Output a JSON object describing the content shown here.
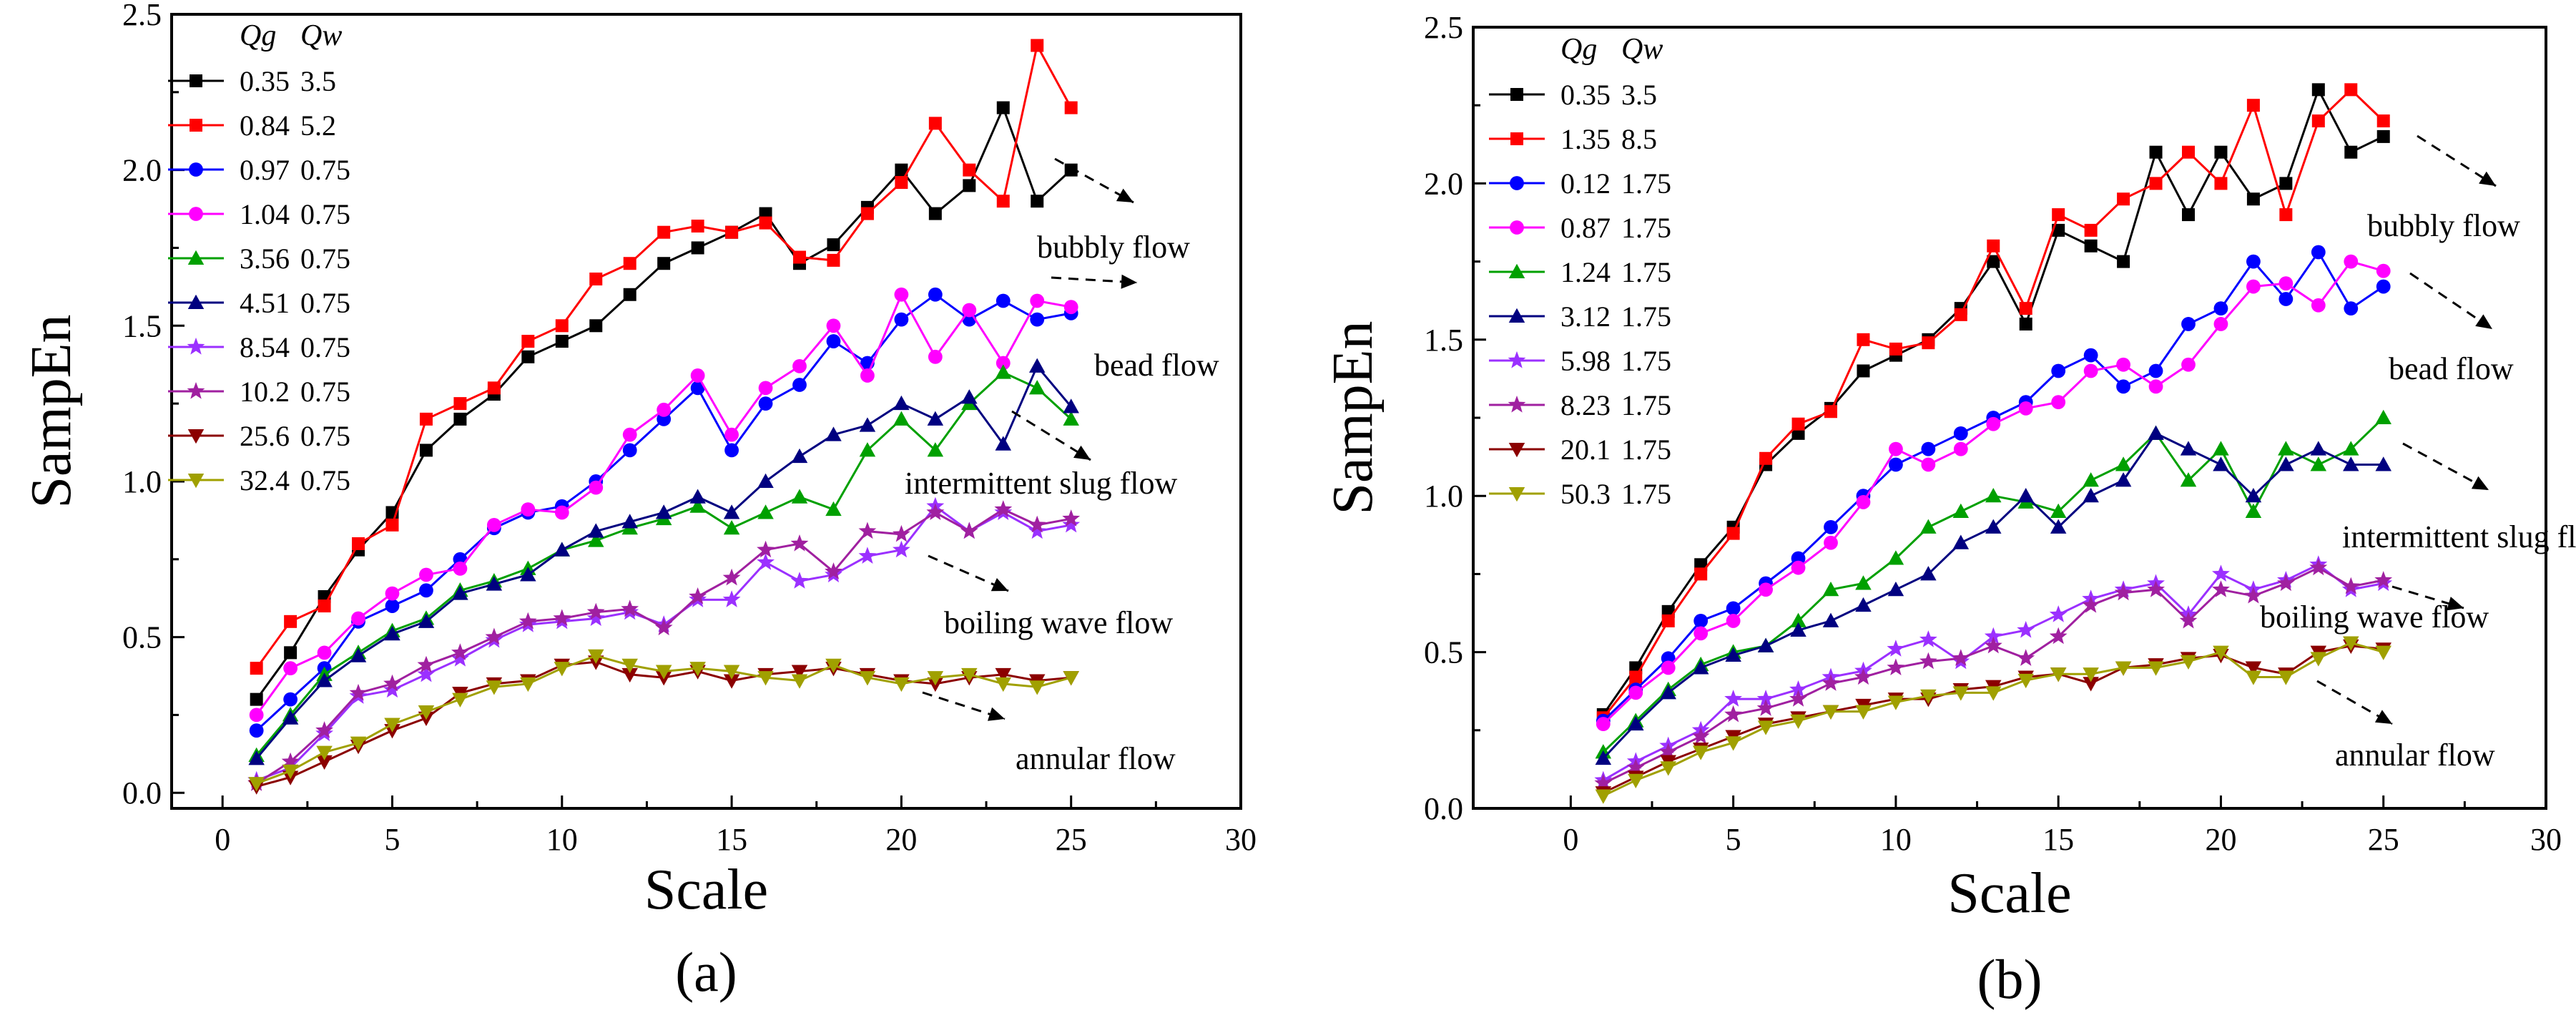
{
  "chart_data": [
    {
      "type": "line",
      "panel": "(a)",
      "xlabel": "Scale",
      "ylabel": "SampEn",
      "xlim": [
        -1.5,
        30
      ],
      "ylim": [
        -0.05,
        2.5
      ],
      "xticks": [
        0,
        5,
        10,
        15,
        20,
        25,
        30
      ],
      "yticks": [
        0.0,
        0.5,
        1.0,
        1.5,
        2.0,
        2.5
      ],
      "legend_headers": [
        "Qg",
        "Qw"
      ],
      "legend_position": "top-left",
      "x": [
        1,
        2,
        3,
        4,
        5,
        6,
        7,
        8,
        9,
        10,
        11,
        12,
        13,
        14,
        15,
        16,
        17,
        18,
        19,
        20,
        21,
        22,
        23,
        24,
        25
      ],
      "series": [
        {
          "qg": "0.35",
          "qw": "3.5",
          "color": "#000000",
          "marker": "square",
          "values": [
            0.3,
            0.45,
            0.63,
            0.78,
            0.9,
            1.1,
            1.2,
            1.28,
            1.4,
            1.45,
            1.5,
            1.6,
            1.7,
            1.75,
            1.8,
            1.86,
            1.7,
            1.76,
            1.88,
            2.0,
            1.86,
            1.95,
            2.2,
            1.9,
            2.0
          ]
        },
        {
          "qg": "0.84",
          "qw": "5.2",
          "color": "#ff0000",
          "marker": "square",
          "values": [
            0.4,
            0.55,
            0.6,
            0.8,
            0.86,
            1.2,
            1.25,
            1.3,
            1.45,
            1.5,
            1.65,
            1.7,
            1.8,
            1.82,
            1.8,
            1.83,
            1.72,
            1.71,
            1.86,
            1.96,
            2.15,
            2.0,
            1.9,
            2.4,
            2.2
          ]
        },
        {
          "qg": "0.97",
          "qw": "0.75",
          "color": "#0000ff",
          "marker": "circle",
          "values": [
            0.2,
            0.3,
            0.4,
            0.55,
            0.6,
            0.65,
            0.75,
            0.85,
            0.9,
            0.92,
            1.0,
            1.1,
            1.2,
            1.3,
            1.1,
            1.25,
            1.31,
            1.45,
            1.38,
            1.52,
            1.6,
            1.52,
            1.58,
            1.52,
            1.54
          ]
        },
        {
          "qg": "1.04",
          "qw": "0.75",
          "color": "#ff00ff",
          "marker": "circle",
          "values": [
            0.25,
            0.4,
            0.45,
            0.56,
            0.64,
            0.7,
            0.72,
            0.86,
            0.91,
            0.9,
            0.98,
            1.15,
            1.23,
            1.34,
            1.15,
            1.3,
            1.37,
            1.5,
            1.34,
            1.6,
            1.4,
            1.55,
            1.38,
            1.58,
            1.56
          ]
        },
        {
          "qg": "3.56",
          "qw": "0.75",
          "color": "#00a000",
          "marker": "triangle-up",
          "values": [
            0.12,
            0.25,
            0.38,
            0.45,
            0.52,
            0.56,
            0.65,
            0.68,
            0.72,
            0.78,
            0.81,
            0.85,
            0.88,
            0.92,
            0.85,
            0.9,
            0.95,
            0.91,
            1.1,
            1.2,
            1.1,
            1.25,
            1.35,
            1.3,
            1.2
          ]
        },
        {
          "qg": "4.51",
          "qw": "0.75",
          "color": "#000080",
          "marker": "triangle-up",
          "values": [
            0.11,
            0.24,
            0.36,
            0.44,
            0.51,
            0.55,
            0.64,
            0.67,
            0.7,
            0.78,
            0.84,
            0.87,
            0.9,
            0.95,
            0.9,
            1.0,
            1.08,
            1.15,
            1.18,
            1.25,
            1.2,
            1.27,
            1.12,
            1.37,
            1.24
          ]
        },
        {
          "qg": "8.54",
          "qw": "0.75",
          "color": "#9b30ff",
          "marker": "star",
          "values": [
            0.04,
            0.08,
            0.19,
            0.31,
            0.33,
            0.38,
            0.43,
            0.49,
            0.54,
            0.55,
            0.56,
            0.58,
            0.54,
            0.62,
            0.62,
            0.74,
            0.68,
            0.7,
            0.76,
            0.78,
            0.92,
            0.84,
            0.9,
            0.84,
            0.86
          ]
        },
        {
          "qg": "10.2",
          "qw": "0.75",
          "color": "#a020a0",
          "marker": "star",
          "values": [
            0.03,
            0.1,
            0.2,
            0.32,
            0.35,
            0.41,
            0.45,
            0.5,
            0.55,
            0.56,
            0.58,
            0.59,
            0.53,
            0.63,
            0.69,
            0.78,
            0.8,
            0.71,
            0.84,
            0.83,
            0.9,
            0.84,
            0.91,
            0.86,
            0.88
          ]
        },
        {
          "qg": "25.6",
          "qw": "0.75",
          "color": "#8b0000",
          "marker": "triangle-down",
          "values": [
            0.02,
            0.05,
            0.1,
            0.15,
            0.2,
            0.24,
            0.32,
            0.35,
            0.36,
            0.41,
            0.42,
            0.38,
            0.37,
            0.39,
            0.36,
            0.38,
            0.39,
            0.4,
            0.38,
            0.36,
            0.35,
            0.37,
            0.38,
            0.36,
            0.37
          ]
        },
        {
          "qg": "32.4",
          "qw": "0.75",
          "color": "#a0a000",
          "marker": "triangle-down",
          "values": [
            0.03,
            0.07,
            0.13,
            0.16,
            0.22,
            0.26,
            0.3,
            0.34,
            0.35,
            0.4,
            0.44,
            0.41,
            0.39,
            0.4,
            0.39,
            0.37,
            0.36,
            0.41,
            0.37,
            0.35,
            0.37,
            0.38,
            0.35,
            0.34,
            0.37
          ]
        }
      ],
      "annotations": [
        {
          "text": "bubbly flow",
          "x": 25.5,
          "y": 2.0
        },
        {
          "text": "bead flow",
          "x": 25.5,
          "y": 1.57
        },
        {
          "text": "intermittent slug flow",
          "x": 23.8,
          "y": 1.27
        },
        {
          "text": "boiling wave flow",
          "x": 21.8,
          "y": 0.88
        },
        {
          "text": "annular flow",
          "x": 21.2,
          "y": 0.34
        }
      ]
    },
    {
      "type": "line",
      "panel": "(b)",
      "xlabel": "Scale",
      "ylabel": "SampEn",
      "xlim": [
        -3,
        30
      ],
      "ylim": [
        0.0,
        2.5
      ],
      "xticks": [
        0,
        5,
        10,
        15,
        20,
        25,
        30
      ],
      "yticks": [
        0.0,
        0.5,
        1.0,
        1.5,
        2.0,
        2.5
      ],
      "legend_headers": [
        "Qg",
        "Qw"
      ],
      "legend_position": "top-left",
      "x": [
        1,
        2,
        3,
        4,
        5,
        6,
        7,
        8,
        9,
        10,
        11,
        12,
        13,
        14,
        15,
        16,
        17,
        18,
        19,
        20,
        21,
        22,
        23,
        24,
        25
      ],
      "series": [
        {
          "qg": "0.35",
          "qw": "3.5",
          "color": "#000000",
          "marker": "square",
          "values": [
            0.3,
            0.45,
            0.63,
            0.78,
            0.9,
            1.1,
            1.2,
            1.28,
            1.4,
            1.45,
            1.5,
            1.6,
            1.75,
            1.55,
            1.85,
            1.8,
            1.75,
            2.1,
            1.9,
            2.1,
            1.95,
            2.0,
            2.3,
            2.1,
            2.15
          ]
        },
        {
          "qg": "1.35",
          "qw": "8.5",
          "color": "#ff0000",
          "marker": "square",
          "values": [
            0.29,
            0.42,
            0.6,
            0.75,
            0.88,
            1.12,
            1.23,
            1.27,
            1.5,
            1.47,
            1.49,
            1.58,
            1.8,
            1.6,
            1.9,
            1.85,
            1.95,
            2.0,
            2.1,
            2.0,
            2.25,
            1.9,
            2.2,
            2.3,
            2.2
          ]
        },
        {
          "qg": "0.12",
          "qw": "1.75",
          "color": "#0000ff",
          "marker": "circle",
          "values": [
            0.28,
            0.38,
            0.48,
            0.6,
            0.64,
            0.72,
            0.8,
            0.9,
            1.0,
            1.1,
            1.15,
            1.2,
            1.25,
            1.3,
            1.4,
            1.45,
            1.35,
            1.4,
            1.55,
            1.6,
            1.75,
            1.63,
            1.78,
            1.6,
            1.67
          ]
        },
        {
          "qg": "0.87",
          "qw": "1.75",
          "color": "#ff00ff",
          "marker": "circle",
          "values": [
            0.27,
            0.37,
            0.45,
            0.56,
            0.6,
            0.7,
            0.77,
            0.85,
            0.98,
            1.15,
            1.1,
            1.15,
            1.23,
            1.28,
            1.3,
            1.4,
            1.42,
            1.35,
            1.42,
            1.55,
            1.67,
            1.68,
            1.61,
            1.75,
            1.72
          ]
        },
        {
          "qg": "1.24",
          "qw": "1.75",
          "color": "#00a000",
          "marker": "triangle-up",
          "values": [
            0.18,
            0.28,
            0.38,
            0.46,
            0.5,
            0.52,
            0.6,
            0.7,
            0.72,
            0.8,
            0.9,
            0.95,
            1.0,
            0.98,
            0.95,
            1.05,
            1.1,
            1.2,
            1.05,
            1.15,
            0.95,
            1.15,
            1.1,
            1.15,
            1.25
          ]
        },
        {
          "qg": "3.12",
          "qw": "1.75",
          "color": "#000080",
          "marker": "triangle-up",
          "values": [
            0.16,
            0.27,
            0.37,
            0.45,
            0.49,
            0.52,
            0.57,
            0.6,
            0.65,
            0.7,
            0.75,
            0.85,
            0.9,
            1.0,
            0.9,
            1.0,
            1.05,
            1.2,
            1.15,
            1.1,
            1.0,
            1.1,
            1.15,
            1.1,
            1.1
          ]
        },
        {
          "qg": "5.98",
          "qw": "1.75",
          "color": "#9b30ff",
          "marker": "star",
          "values": [
            0.09,
            0.15,
            0.2,
            0.25,
            0.35,
            0.35,
            0.38,
            0.42,
            0.44,
            0.51,
            0.54,
            0.47,
            0.55,
            0.57,
            0.62,
            0.67,
            0.7,
            0.72,
            0.62,
            0.75,
            0.7,
            0.73,
            0.78,
            0.7,
            0.72
          ]
        },
        {
          "qg": "8.23",
          "qw": "1.75",
          "color": "#a020a0",
          "marker": "star",
          "values": [
            0.08,
            0.13,
            0.18,
            0.23,
            0.3,
            0.32,
            0.35,
            0.4,
            0.42,
            0.45,
            0.47,
            0.48,
            0.52,
            0.48,
            0.55,
            0.65,
            0.69,
            0.7,
            0.6,
            0.7,
            0.68,
            0.72,
            0.77,
            0.71,
            0.73
          ]
        },
        {
          "qg": "20.1",
          "qw": "1.75",
          "color": "#8b0000",
          "marker": "triangle-down",
          "values": [
            0.05,
            0.1,
            0.15,
            0.19,
            0.23,
            0.27,
            0.29,
            0.31,
            0.33,
            0.35,
            0.35,
            0.38,
            0.39,
            0.42,
            0.43,
            0.4,
            0.45,
            0.46,
            0.48,
            0.49,
            0.45,
            0.43,
            0.5,
            0.52,
            0.51
          ]
        },
        {
          "qg": "50.3",
          "qw": "1.75",
          "color": "#a0a000",
          "marker": "triangle-down",
          "values": [
            0.04,
            0.09,
            0.13,
            0.18,
            0.21,
            0.26,
            0.28,
            0.31,
            0.31,
            0.34,
            0.36,
            0.37,
            0.37,
            0.41,
            0.43,
            0.43,
            0.45,
            0.45,
            0.47,
            0.5,
            0.42,
            0.42,
            0.48,
            0.53,
            0.5
          ]
        }
      ],
      "annotations": [
        {
          "text": "bubbly flow",
          "x": 25.5,
          "y": 2.13
        },
        {
          "text": "bead flow",
          "x": 25.5,
          "y": 1.7
        },
        {
          "text": "intermittent slug flow",
          "x": 25.0,
          "y": 1.15
        },
        {
          "text": "boiling wave flow",
          "x": 25.0,
          "y": 0.7
        },
        {
          "text": "annular flow",
          "x": 23.5,
          "y": 0.42
        }
      ]
    }
  ]
}
